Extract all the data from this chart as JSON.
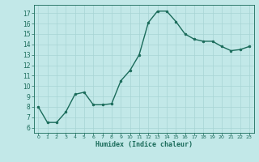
{
  "x": [
    0,
    1,
    2,
    3,
    4,
    5,
    6,
    7,
    8,
    9,
    10,
    11,
    12,
    13,
    14,
    15,
    16,
    17,
    18,
    19,
    20,
    21,
    22,
    23
  ],
  "y": [
    8,
    6.5,
    6.5,
    7.5,
    9.2,
    9.4,
    8.2,
    8.2,
    8.3,
    10.5,
    11.5,
    13.0,
    16.1,
    17.2,
    17.2,
    16.2,
    15.0,
    14.5,
    14.3,
    14.3,
    13.8,
    13.4,
    13.5,
    13.8
  ],
  "xlabel": "Humidex (Indice chaleur)",
  "ylim": [
    5.5,
    17.8
  ],
  "xlim": [
    -0.5,
    23.5
  ],
  "yticks": [
    6,
    7,
    8,
    9,
    10,
    11,
    12,
    13,
    14,
    15,
    16,
    17
  ],
  "xticks": [
    0,
    1,
    2,
    3,
    4,
    5,
    6,
    7,
    8,
    9,
    10,
    11,
    12,
    13,
    14,
    15,
    16,
    17,
    18,
    19,
    20,
    21,
    22,
    23
  ],
  "line_color": "#1a6b5a",
  "marker_color": "#1a6b5a",
  "bg_color": "#c2e8e8",
  "grid_color": "#a8d4d4",
  "font_color": "#1a6b5a"
}
